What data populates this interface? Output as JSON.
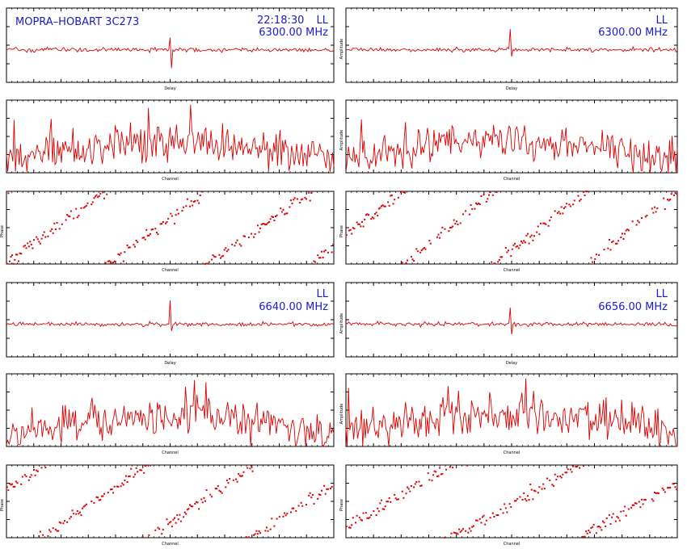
{
  "header": {
    "source": "MOPRA–HOBART 3C273",
    "time": "22:18:30",
    "polarization": "LL"
  },
  "colors": {
    "trace": "#dd0000",
    "axes": "#000000",
    "header_text": "#1a1acc"
  },
  "chart_data": [
    {
      "block": 1,
      "frequency": "6300.00 MHz",
      "delay_panels": [
        {
          "type": "line",
          "xlabel": "Delay",
          "ylabel": "",
          "xlim": [
            -300,
            300
          ],
          "peak_x": 0,
          "peak": 3.6,
          "dip": -5.5
        },
        {
          "type": "line",
          "xlabel": "Delay",
          "ylabel": "Amplitude",
          "xlim": [
            -300,
            300
          ],
          "peak_x": -2,
          "peak": 7.5,
          "dip": -2.0
        }
      ],
      "amplitude_panels": [
        {
          "type": "line",
          "xlabel": "Channel",
          "ylabel": "",
          "xlim": [
            0,
            256
          ],
          "mean": 2.2,
          "noise": 0.65,
          "ylim": [
            0.7,
            4.2
          ]
        },
        {
          "type": "line",
          "xlabel": "Channel",
          "ylabel": "Amplitude",
          "xlim": [
            0,
            256
          ],
          "mean": 2.4,
          "noise": 0.7,
          "ylim": [
            0.7,
            4.5
          ]
        }
      ],
      "phase_panels": [
        {
          "type": "scatter",
          "xlabel": "Channel",
          "ylabel": "Phase",
          "xlim": [
            0,
            256
          ],
          "ylim": [
            -180,
            180
          ],
          "wraps": 3.2,
          "offset": -170
        },
        {
          "type": "scatter",
          "xlabel": "Channel",
          "ylabel": "Phase",
          "xlim": [
            0,
            256
          ],
          "ylim": [
            -180,
            180
          ],
          "wraps": 3.6,
          "offset": -40
        }
      ]
    },
    {
      "block": 2,
      "frequency_left": "6640.00 MHz",
      "frequency_right": "6656.00 MHz",
      "delay_panels": [
        {
          "type": "line",
          "xlabel": "Delay",
          "ylabel": "",
          "xlim": [
            -300,
            300
          ],
          "peak_x": 0,
          "peak": 7.0,
          "dip": -2.0
        },
        {
          "type": "line",
          "xlabel": "Delay",
          "ylabel": "Amplitude",
          "xlim": [
            -300,
            300
          ],
          "peak_x": -2,
          "peak": 6.0,
          "dip": -3.0
        }
      ],
      "amplitude_panels": [
        {
          "type": "line",
          "xlabel": "Channel",
          "ylabel": "",
          "xlim": [
            0,
            256
          ],
          "mean": 2.2,
          "noise": 0.65,
          "ylim": [
            0.7,
            4.2
          ]
        },
        {
          "type": "line",
          "xlabel": "Channel",
          "ylabel": "Amplitude",
          "xlim": [
            0,
            256
          ],
          "mean": 2.4,
          "noise": 0.7,
          "ylim": [
            0.7,
            4.5
          ]
        }
      ],
      "phase_panels": [
        {
          "type": "scatter",
          "xlabel": "Channel",
          "ylabel": "Phase",
          "xlim": [
            0,
            256
          ],
          "ylim": [
            -180,
            180
          ],
          "wraps": 3.1,
          "offset": 60
        },
        {
          "type": "scatter",
          "xlabel": "Channel",
          "ylabel": "Phase",
          "xlim": [
            0,
            256
          ],
          "ylim": [
            -180,
            180
          ],
          "wraps": 2.6,
          "offset": -120
        }
      ]
    }
  ]
}
